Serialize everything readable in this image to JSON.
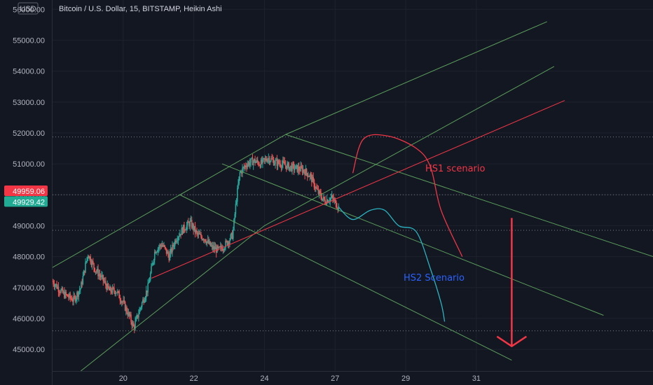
{
  "chart_data": {
    "type": "candlestick",
    "title": "Bitcoin / U.S. Dollar, 15, BITSTAMP, Heikin Ashi",
    "currency": "USD",
    "x_ticks": [
      "20",
      "22",
      "24",
      "27",
      "29",
      "31"
    ],
    "x_tick_days": [
      20,
      22,
      24,
      26,
      28,
      30
    ],
    "xlim_days": [
      18.0,
      35.0
    ],
    "y_ticks": [
      45000,
      46000,
      47000,
      48000,
      49000,
      50000,
      51000,
      52000,
      53000,
      54000,
      55000,
      56000
    ],
    "y_tick_labels": [
      "45000.00",
      "46000.00",
      "47000.00",
      "48000.00",
      "49000.00",
      "50000.00",
      "51000.00",
      "52000.00",
      "53000.00",
      "54000.00",
      "55000.00",
      "56000.00"
    ],
    "ylim": [
      44300,
      56300
    ],
    "price_labels": [
      {
        "value": 49959.06,
        "text": "49959.06",
        "color": "#f23645"
      },
      {
        "value": 49929.42,
        "text": "49929.42",
        "color": "#22ab94"
      }
    ],
    "horizontal_levels": [
      51870,
      50000,
      48850,
      45600
    ],
    "price_path": [
      [
        18.0,
        47200
      ],
      [
        18.3,
        46800
      ],
      [
        18.6,
        46600
      ],
      [
        18.8,
        47000
      ],
      [
        19.0,
        48100
      ],
      [
        19.2,
        47600
      ],
      [
        19.4,
        47300
      ],
      [
        19.6,
        46900
      ],
      [
        19.8,
        46900
      ],
      [
        20.0,
        46500
      ],
      [
        20.2,
        46000
      ],
      [
        20.3,
        45700
      ],
      [
        20.5,
        46400
      ],
      [
        20.7,
        47000
      ],
      [
        20.9,
        48200
      ],
      [
        21.1,
        48400
      ],
      [
        21.3,
        48000
      ],
      [
        21.5,
        48600
      ],
      [
        21.7,
        48900
      ],
      [
        21.9,
        49100
      ],
      [
        22.1,
        48700
      ],
      [
        22.3,
        48600
      ],
      [
        22.5,
        48300
      ],
      [
        22.7,
        48200
      ],
      [
        22.9,
        48400
      ],
      [
        23.1,
        48700
      ],
      [
        23.2,
        49800
      ],
      [
        23.3,
        50700
      ],
      [
        23.5,
        51000
      ],
      [
        23.7,
        51100
      ],
      [
        23.9,
        51000
      ],
      [
        24.1,
        51200
      ],
      [
        24.3,
        51050
      ],
      [
        24.5,
        51000
      ],
      [
        24.7,
        50900
      ],
      [
        24.9,
        50850
      ],
      [
        25.1,
        50800
      ],
      [
        25.3,
        50600
      ],
      [
        25.5,
        50100
      ],
      [
        25.7,
        49800
      ],
      [
        25.9,
        49900
      ],
      [
        26.1,
        49600
      ]
    ],
    "annotations": [
      {
        "text": "HS1 scenario",
        "color": "#f23645"
      },
      {
        "text": "HS2 Scenario",
        "color": "#2962ff"
      }
    ],
    "trend_lines": [
      {
        "name": "upper-channel-line",
        "color": "#5b9e5b",
        "points": [
          [
            18.0,
            47650
          ],
          [
            24.6,
            51950
          ],
          [
            32.0,
            55600
          ]
        ]
      },
      {
        "name": "support-line",
        "color": "#5b9e5b",
        "points": [
          [
            18.8,
            44300
          ],
          [
            24.0,
            49000
          ],
          [
            32.2,
            54150
          ]
        ]
      },
      {
        "name": "upper-descending-line",
        "color": "#5b9e5b",
        "points": [
          [
            24.6,
            51950
          ],
          [
            35.0,
            48000
          ]
        ]
      },
      {
        "name": "middle-descending-line",
        "color": "#5b9e5b",
        "points": [
          [
            22.8,
            51000
          ],
          [
            33.6,
            46100
          ]
        ]
      },
      {
        "name": "lower-descending-line",
        "color": "#5b9e5b",
        "points": [
          [
            21.6,
            50000
          ],
          [
            31.0,
            44650
          ]
        ]
      },
      {
        "name": "red-trend-line",
        "color": "#f23645",
        "points": [
          [
            20.8,
            47300
          ],
          [
            32.5,
            53050
          ]
        ]
      }
    ],
    "scenario_paths": [
      {
        "name": "hs1-scenario-path",
        "color": "#f23645",
        "points": [
          [
            26.5,
            50700
          ],
          [
            26.8,
            51800
          ],
          [
            27.5,
            51900
          ],
          [
            28.3,
            51500
          ],
          [
            28.7,
            50900
          ],
          [
            29.0,
            49500
          ],
          [
            29.6,
            48000
          ]
        ]
      },
      {
        "name": "hs2-scenario-path",
        "color": "#2ab3c0",
        "points": [
          [
            26.1,
            49600
          ],
          [
            26.5,
            49200
          ],
          [
            27.0,
            49500
          ],
          [
            27.4,
            49500
          ],
          [
            27.8,
            49000
          ],
          [
            28.3,
            48800
          ],
          [
            28.7,
            47600
          ],
          [
            29.0,
            46500
          ],
          [
            29.1,
            45900
          ]
        ]
      }
    ],
    "forecast_arrow": {
      "color": "#f23645",
      "from": [
        31.0,
        49250
      ],
      "to": [
        31.0,
        45100
      ]
    }
  }
}
